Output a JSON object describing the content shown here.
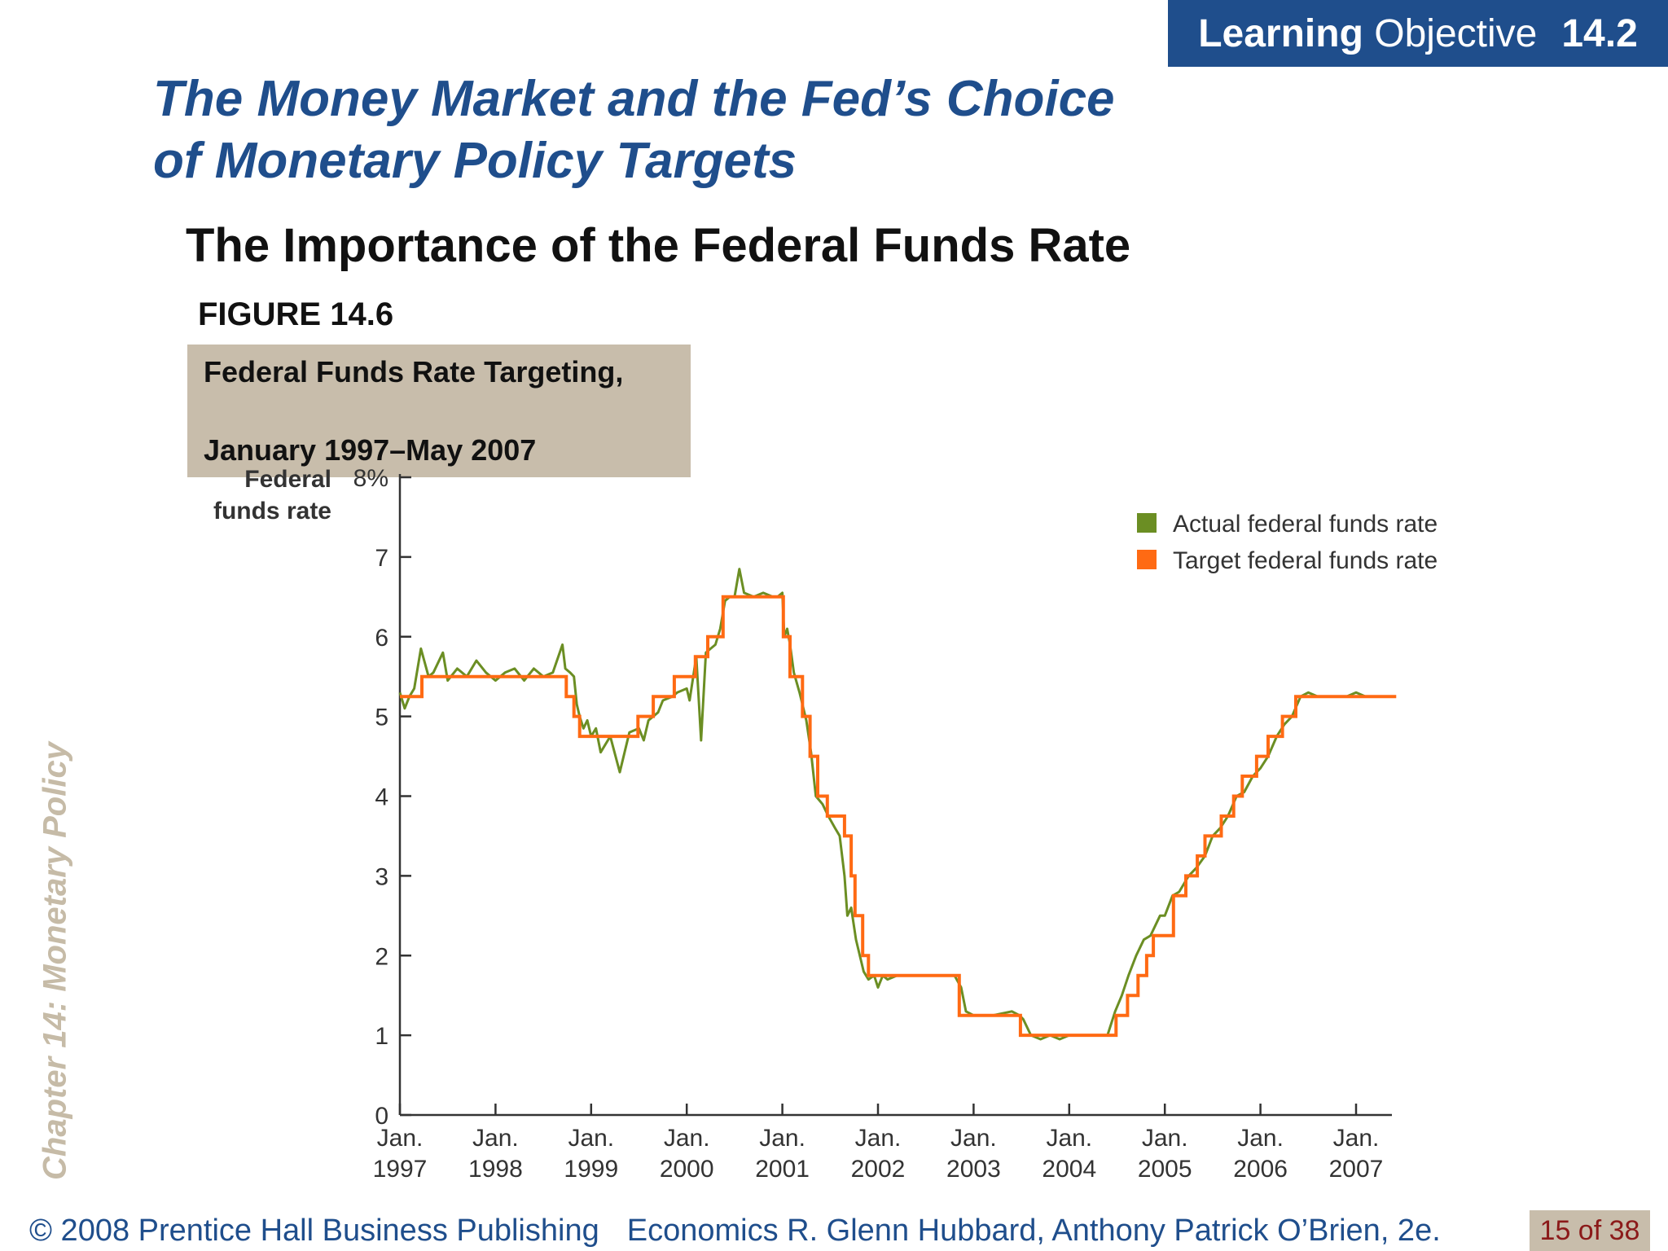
{
  "header": {
    "lo_strong": "Learning",
    "lo_rest": "Objective",
    "lo_number": "14.2"
  },
  "slide": {
    "title_line1": "The Money Market and the Fed’s Choice",
    "title_line2": "of Monetary Policy Targets",
    "subtitle": "The Importance of the Federal Funds Rate",
    "figure_label": "FIGURE 14.6",
    "side_label": "Chapter 14:  Monetary Policy"
  },
  "footer": {
    "copyright": "© 2008 Prentice Hall Business Publishing",
    "book": "Economics  R. Glenn Hubbard, Anthony Patrick O’Brien, 2e.",
    "page": "15 of 38"
  },
  "colors": {
    "brand_blue": "#1f4e8c",
    "caption_bg": "#c8bdab",
    "actual": "#6b8e23",
    "target": "#ff6a13"
  },
  "chart_data": {
    "type": "line",
    "title": "Federal Funds Rate Targeting,",
    "subtitle": "January 1997–May 2007",
    "ylabel_line1": "Federal",
    "ylabel_line2": "funds rate",
    "ylim": [
      0,
      8
    ],
    "y_ticks": [
      "0",
      "1",
      "2",
      "3",
      "4",
      "5",
      "6",
      "7",
      "8%"
    ],
    "xlim": [
      1997.0,
      2007.42
    ],
    "x_ticks": [
      {
        "x": 1997,
        "line1": "Jan.",
        "line2": "1997"
      },
      {
        "x": 1998,
        "line1": "Jan.",
        "line2": "1998"
      },
      {
        "x": 1999,
        "line1": "Jan.",
        "line2": "1999"
      },
      {
        "x": 2000,
        "line1": "Jan.",
        "line2": "2000"
      },
      {
        "x": 2001,
        "line1": "Jan.",
        "line2": "2001"
      },
      {
        "x": 2002,
        "line1": "Jan.",
        "line2": "2002"
      },
      {
        "x": 2003,
        "line1": "Jan.",
        "line2": "2003"
      },
      {
        "x": 2004,
        "line1": "Jan.",
        "line2": "2004"
      },
      {
        "x": 2005,
        "line1": "Jan.",
        "line2": "2005"
      },
      {
        "x": 2006,
        "line1": "Jan.",
        "line2": "2006"
      },
      {
        "x": 2007,
        "line1": "Jan.",
        "line2": "2007"
      }
    ],
    "grid": false,
    "legend_position": "top-right",
    "series": [
      {
        "name": "Actual federal funds rate",
        "color": "#6b8e23",
        "x": [
          1997.0,
          1997.05,
          1997.1,
          1997.15,
          1997.22,
          1997.3,
          1997.35,
          1997.45,
          1997.5,
          1997.6,
          1997.7,
          1997.8,
          1997.9,
          1998.0,
          1998.1,
          1998.2,
          1998.3,
          1998.4,
          1998.5,
          1998.6,
          1998.7,
          1998.73,
          1998.78,
          1998.82,
          1998.85,
          1998.88,
          1998.92,
          1998.96,
          1999.0,
          1999.05,
          1999.1,
          1999.2,
          1999.3,
          1999.4,
          1999.5,
          1999.55,
          1999.6,
          1999.7,
          1999.75,
          1999.85,
          1999.9,
          2000.0,
          2000.03,
          2000.1,
          2000.15,
          2000.2,
          2000.25,
          2000.3,
          2000.35,
          2000.4,
          2000.45,
          2000.5,
          2000.55,
          2000.6,
          2000.7,
          2000.8,
          2000.9,
          2000.95,
          2001.0,
          2001.02,
          2001.05,
          2001.08,
          2001.12,
          2001.18,
          2001.25,
          2001.3,
          2001.35,
          2001.42,
          2001.48,
          2001.55,
          2001.6,
          2001.65,
          2001.68,
          2001.72,
          2001.77,
          2001.85,
          2001.9,
          2001.96,
          2002.0,
          2002.05,
          2002.1,
          2002.2,
          2002.4,
          2002.6,
          2002.8,
          2002.87,
          2002.92,
          2003.0,
          2003.2,
          2003.4,
          2003.48,
          2003.52,
          2003.6,
          2003.7,
          2003.8,
          2003.9,
          2004.0,
          2004.2,
          2004.4,
          2004.48,
          2004.55,
          2004.62,
          2004.7,
          2004.78,
          2004.85,
          2004.95,
          2005.0,
          2005.08,
          2005.15,
          2005.25,
          2005.33,
          2005.42,
          2005.5,
          2005.58,
          2005.66,
          2005.75,
          2005.83,
          2005.92,
          2006.0,
          2006.08,
          2006.17,
          2006.25,
          2006.33,
          2006.42,
          2006.5,
          2006.6,
          2006.7,
          2006.8,
          2006.9,
          2007.0,
          2007.1,
          2007.2,
          2007.3,
          2007.4
        ],
        "values": [
          5.3,
          5.1,
          5.25,
          5.35,
          5.85,
          5.5,
          5.55,
          5.8,
          5.45,
          5.6,
          5.5,
          5.7,
          5.55,
          5.45,
          5.55,
          5.6,
          5.45,
          5.6,
          5.5,
          5.55,
          5.9,
          5.6,
          5.55,
          5.5,
          5.15,
          5.0,
          4.85,
          4.95,
          4.75,
          4.85,
          4.55,
          4.75,
          4.3,
          4.8,
          4.85,
          4.7,
          4.95,
          5.05,
          5.2,
          5.25,
          5.3,
          5.35,
          5.2,
          5.75,
          4.7,
          5.8,
          5.85,
          5.9,
          6.1,
          6.45,
          6.5,
          6.5,
          6.85,
          6.55,
          6.5,
          6.55,
          6.5,
          6.5,
          6.55,
          6.0,
          6.1,
          5.9,
          5.55,
          5.3,
          4.95,
          4.55,
          4.0,
          3.9,
          3.75,
          3.6,
          3.5,
          3.0,
          2.5,
          2.6,
          2.2,
          1.8,
          1.7,
          1.75,
          1.6,
          1.75,
          1.7,
          1.75,
          1.75,
          1.75,
          1.75,
          1.6,
          1.3,
          1.25,
          1.25,
          1.3,
          1.25,
          1.2,
          1.0,
          0.95,
          1.0,
          0.95,
          1.0,
          1.0,
          1.0,
          1.3,
          1.5,
          1.75,
          2.0,
          2.2,
          2.25,
          2.5,
          2.5,
          2.75,
          2.8,
          3.0,
          3.1,
          3.25,
          3.5,
          3.6,
          3.75,
          4.0,
          4.05,
          4.25,
          4.35,
          4.5,
          4.75,
          4.9,
          5.0,
          5.25,
          5.3,
          5.25,
          5.25,
          5.25,
          5.25,
          5.3,
          5.25,
          5.25,
          5.25,
          5.25
        ]
      },
      {
        "name": "Target federal funds rate",
        "color": "#ff6a13",
        "x": [
          1997.0,
          1997.23,
          1998.74,
          1998.82,
          1998.88,
          1999.49,
          1999.65,
          1999.87,
          2000.09,
          2000.22,
          2000.38,
          2001.01,
          2001.08,
          2001.21,
          2001.29,
          2001.37,
          2001.47,
          2001.65,
          2001.72,
          2001.76,
          2001.84,
          2001.9,
          2001.95,
          2002.85,
          2003.49,
          2004.49,
          2004.61,
          2004.72,
          2004.81,
          2004.88,
          2004.95,
          2005.09,
          2005.22,
          2005.34,
          2005.42,
          2005.59,
          2005.72,
          2005.81,
          2005.96,
          2006.08,
          2006.23,
          2006.37,
          2006.45,
          2007.42
        ],
        "values": [
          5.25,
          5.5,
          5.25,
          5.0,
          4.75,
          5.0,
          5.25,
          5.5,
          5.75,
          6.0,
          6.5,
          6.0,
          5.5,
          5.0,
          4.5,
          4.0,
          3.75,
          3.5,
          3.0,
          2.5,
          2.0,
          1.75,
          1.75,
          1.25,
          1.0,
          1.25,
          1.5,
          1.75,
          2.0,
          2.25,
          2.25,
          2.75,
          3.0,
          3.25,
          3.5,
          3.75,
          4.0,
          4.25,
          4.5,
          4.75,
          5.0,
          5.25,
          5.25,
          5.25
        ]
      }
    ]
  }
}
